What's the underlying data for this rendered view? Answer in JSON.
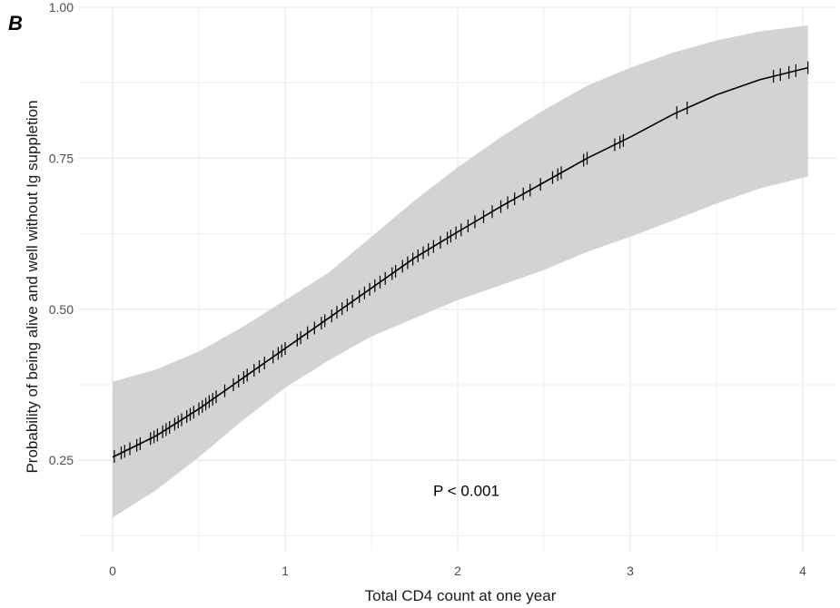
{
  "chart_data": {
    "type": "line",
    "panel_label": "B",
    "xlabel": "Total CD4 count at one year",
    "ylabel": "Probability of being alive and well without Ig suppletion",
    "xlim": [
      -0.2,
      4.2
    ],
    "ylim": [
      0.1,
      1.0
    ],
    "x_ticks": [
      0,
      1,
      2,
      3,
      4
    ],
    "x_tick_labels": [
      "0",
      "1",
      "2",
      "3",
      "4"
    ],
    "y_ticks": [
      0.25,
      0.5,
      0.75,
      1.0
    ],
    "y_tick_labels": [
      "0.25",
      "0.50",
      "0.75",
      "1.00"
    ],
    "grid": true,
    "annotation": {
      "text": "P < 0.001",
      "x": 2.05,
      "y": 0.2
    },
    "series": [
      {
        "x": [
          0,
          0.25,
          0.5,
          0.75,
          1.0,
          1.25,
          1.5,
          1.75,
          2.0,
          2.25,
          2.5,
          2.75,
          3.0,
          3.25,
          3.5,
          3.75,
          4.03
        ],
        "y": [
          0.255,
          0.29,
          0.335,
          0.385,
          0.435,
          0.485,
          0.535,
          0.585,
          0.628,
          0.67,
          0.71,
          0.75,
          0.785,
          0.823,
          0.855,
          0.88,
          0.9
        ],
        "ci_lower": [
          0.155,
          0.2,
          0.255,
          0.315,
          0.37,
          0.415,
          0.455,
          0.485,
          0.515,
          0.54,
          0.565,
          0.595,
          0.62,
          0.647,
          0.675,
          0.7,
          0.72
        ],
        "ci_upper": [
          0.38,
          0.4,
          0.43,
          0.47,
          0.515,
          0.56,
          0.62,
          0.68,
          0.735,
          0.785,
          0.83,
          0.87,
          0.9,
          0.925,
          0.945,
          0.96,
          0.97
        ]
      }
    ],
    "rug_x": [
      0.01,
      0.05,
      0.07,
      0.1,
      0.14,
      0.16,
      0.22,
      0.24,
      0.26,
      0.29,
      0.31,
      0.33,
      0.36,
      0.38,
      0.4,
      0.43,
      0.45,
      0.47,
      0.5,
      0.52,
      0.54,
      0.56,
      0.58,
      0.6,
      0.65,
      0.7,
      0.73,
      0.76,
      0.78,
      0.82,
      0.85,
      0.88,
      0.93,
      0.96,
      0.98,
      1.0,
      1.07,
      1.09,
      1.13,
      1.17,
      1.21,
      1.23,
      1.27,
      1.3,
      1.33,
      1.36,
      1.39,
      1.43,
      1.46,
      1.49,
      1.52,
      1.55,
      1.58,
      1.62,
      1.64,
      1.68,
      1.71,
      1.74,
      1.77,
      1.8,
      1.83,
      1.86,
      1.9,
      1.94,
      1.96,
      1.99,
      2.02,
      2.06,
      2.1,
      2.15,
      2.2,
      2.25,
      2.29,
      2.33,
      2.38,
      2.42,
      2.48,
      2.55,
      2.58,
      2.6,
      2.73,
      2.75,
      2.91,
      2.94,
      2.96,
      3.27,
      3.33,
      3.83,
      3.87,
      3.92,
      3.96,
      4.03
    ],
    "colors": {
      "line": "#000000",
      "ribbon": "#d3d3d3",
      "grid": "#ebebeb",
      "background": "#ffffff"
    }
  }
}
